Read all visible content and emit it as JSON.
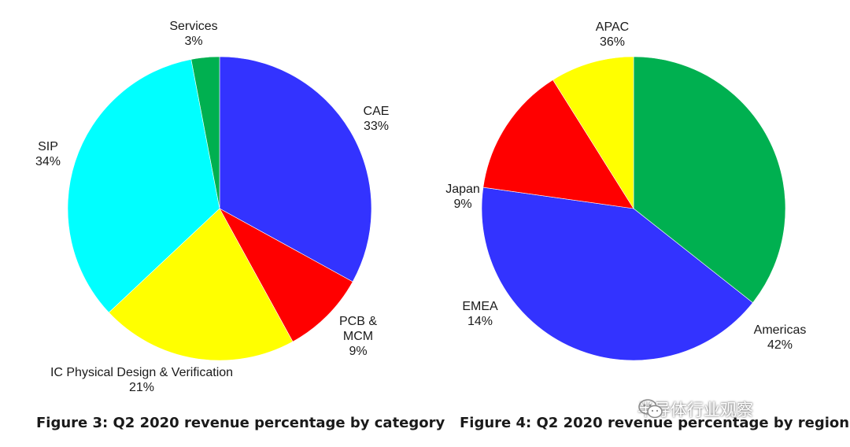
{
  "chart_data": [
    {
      "type": "pie",
      "title": "Figure 3: Q2 2020 revenue percentage by category",
      "start_angle_deg": 0,
      "direction": "clockwise",
      "slices": [
        {
          "label": "CAE",
          "value": 33,
          "value_label": "33%",
          "color": "#3333ff"
        },
        {
          "label": "PCB & MCM",
          "label_lines": [
            "PCB &",
            "MCM"
          ],
          "value": 9,
          "value_label": "9%",
          "color": "#ff0000"
        },
        {
          "label": "IC Physical Design & Verification",
          "value": 21,
          "value_label": "21%",
          "color": "#ffff00"
        },
        {
          "label": "SIP",
          "value": 34,
          "value_label": "34%",
          "color": "#00ffff"
        },
        {
          "label": "Services",
          "value": 3,
          "value_label": "3%",
          "color": "#00b050"
        }
      ]
    },
    {
      "type": "pie",
      "title": "Figure 4: Q2 2020 revenue percentage by region",
      "start_angle_deg": 0,
      "direction": "clockwise",
      "slices": [
        {
          "label": "APAC",
          "value": 36,
          "value_label": "36%",
          "color": "#00b050"
        },
        {
          "label": "Americas",
          "value": 42,
          "value_label": "42%",
          "color": "#3333ff"
        },
        {
          "label": "EMEA",
          "value": 14,
          "value_label": "14%",
          "color": "#ff0000"
        },
        {
          "label": "Japan",
          "value": 9,
          "value_label": "9%",
          "color": "#ffff00"
        }
      ]
    }
  ],
  "watermark": {
    "text": "半导体行业观察",
    "icon": "wechat-logo-icon"
  }
}
